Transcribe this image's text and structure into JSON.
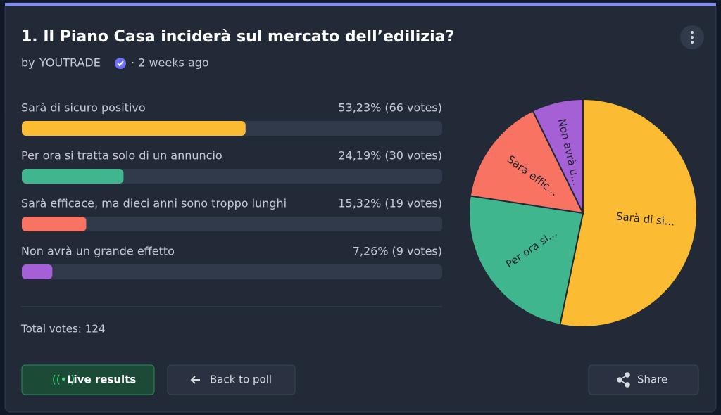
{
  "poll": {
    "title": "1. Il Piano Casa inciderà sul mercato dell’edilizia?",
    "author_prefix": "by",
    "author": "YOUTRADE",
    "time": "· 2 weeks ago",
    "options": [
      {
        "label": "Sarà di sicuro positivo",
        "percent": 53.23,
        "percent_label": "53,23%",
        "votes": 66,
        "votes_label": "(66 votes)",
        "color": "#fbbc34",
        "pie_label": "Sarà di si..."
      },
      {
        "label": "Per ora si tratta solo di un annuncio",
        "percent": 24.19,
        "percent_label": "24,19%",
        "votes": 30,
        "votes_label": "(30 votes)",
        "color": "#3fb68e",
        "pie_label": "Per ora si..."
      },
      {
        "label": "Sarà efficace, ma dieci anni sono troppo lunghi",
        "percent": 15.32,
        "percent_label": "15,32%",
        "votes": 19,
        "votes_label": "(19 votes)",
        "color": "#f97363",
        "pie_label": "Sarà effic..."
      },
      {
        "label": "Non avrà un grande effetto",
        "percent": 7.26,
        "percent_label": "7,26%",
        "votes": 9,
        "votes_label": "(9 votes)",
        "color": "#a660d6",
        "pie_label": "Non avrà u..."
      }
    ],
    "total_label": "Total votes:",
    "total": 124,
    "buttons": {
      "live": "Live results",
      "back": "Back to poll",
      "share": "Share"
    }
  }
}
